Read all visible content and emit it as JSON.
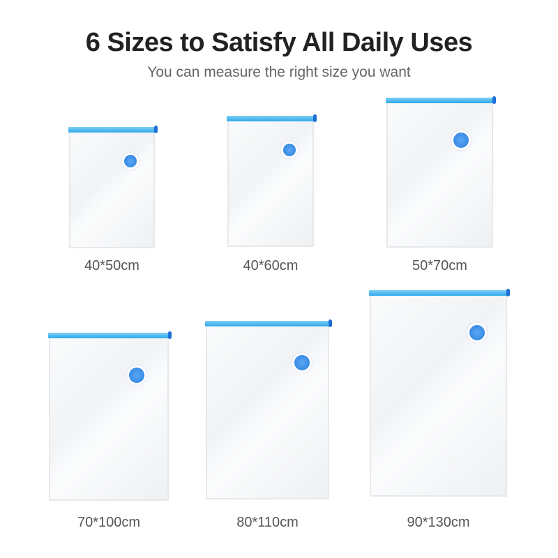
{
  "header": {
    "title": "6 Sizes to Satisfy All Daily Uses",
    "subtitle": "You can measure the right size you want"
  },
  "colors": {
    "zipper": "#2ea8ea",
    "valve": "#3d8fe8",
    "text": "#555555"
  },
  "bags": [
    {
      "size": "40*50cm"
    },
    {
      "size": "40*60cm"
    },
    {
      "size": "50*70cm"
    },
    {
      "size": "70*100cm"
    },
    {
      "size": "80*110cm"
    },
    {
      "size": "90*130cm"
    }
  ]
}
